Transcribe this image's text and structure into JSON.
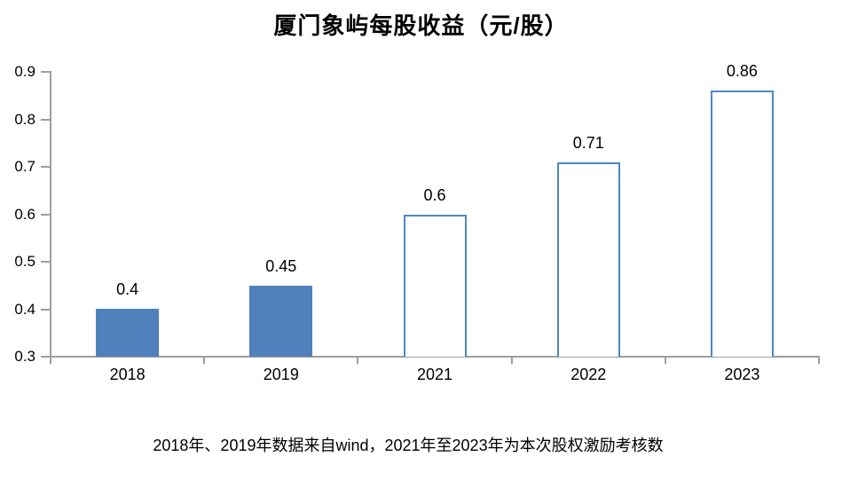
{
  "chart_data": {
    "type": "bar",
    "title": "厦门象屿每股收益（元/股）",
    "categories": [
      "2018",
      "2019",
      "2021",
      "2022",
      "2023"
    ],
    "values": [
      0.4,
      0.45,
      0.6,
      0.71,
      0.86
    ],
    "data_labels": [
      "0.4",
      "0.45",
      "0.6",
      "0.71",
      "0.86"
    ],
    "bar_styles": [
      "solid",
      "solid",
      "outline",
      "outline",
      "outline"
    ],
    "ylim": [
      0.3,
      0.9
    ],
    "ytick_interval": 0.1,
    "ytick_labels": [
      "0.3",
      "0.4",
      "0.5",
      "0.6",
      "0.7",
      "0.8",
      "0.9"
    ],
    "grid": false,
    "legend": "none",
    "annotation": "2018年、2019年数据来自wind，2021年至2023年为本次股权激励考核数",
    "colors": {
      "bar_fill": "#4F81BD",
      "bar_outline": "#4F86C6",
      "axis": "#9E9E9E",
      "text": "#000000"
    }
  }
}
